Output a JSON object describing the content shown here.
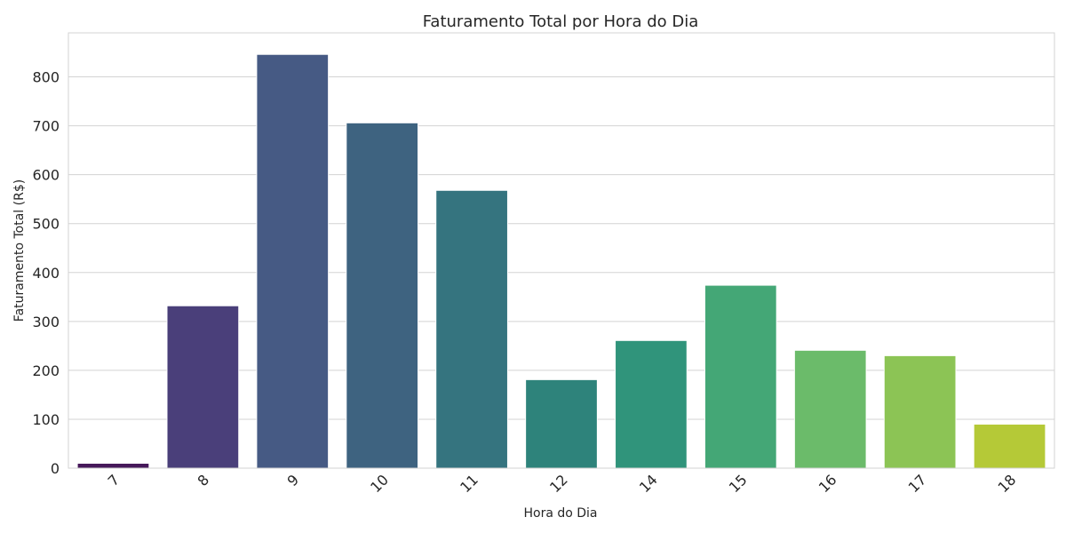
{
  "chart_data": {
    "type": "bar",
    "title": "Faturamento Total por Hora do Dia",
    "xlabel": "Hora do Dia",
    "ylabel": "Faturamento Total (R$)",
    "categories": [
      "7",
      "8",
      "9",
      "10",
      "11",
      "12",
      "14",
      "15",
      "16",
      "17",
      "18"
    ],
    "values": [
      10,
      332,
      846,
      706,
      568,
      181,
      261,
      374,
      241,
      230,
      90
    ],
    "colors": [
      "#46185a",
      "#4a3f7a",
      "#465a84",
      "#3e6380",
      "#35747f",
      "#2e837b",
      "#30947b",
      "#44a776",
      "#6bbb6a",
      "#8cc455",
      "#b5c937"
    ],
    "ylim": [
      0,
      890
    ],
    "yticks": [
      "0",
      "100",
      "200",
      "300",
      "400",
      "500",
      "600",
      "700",
      "800"
    ],
    "grid": "horizontal",
    "background": "#ffffff"
  }
}
